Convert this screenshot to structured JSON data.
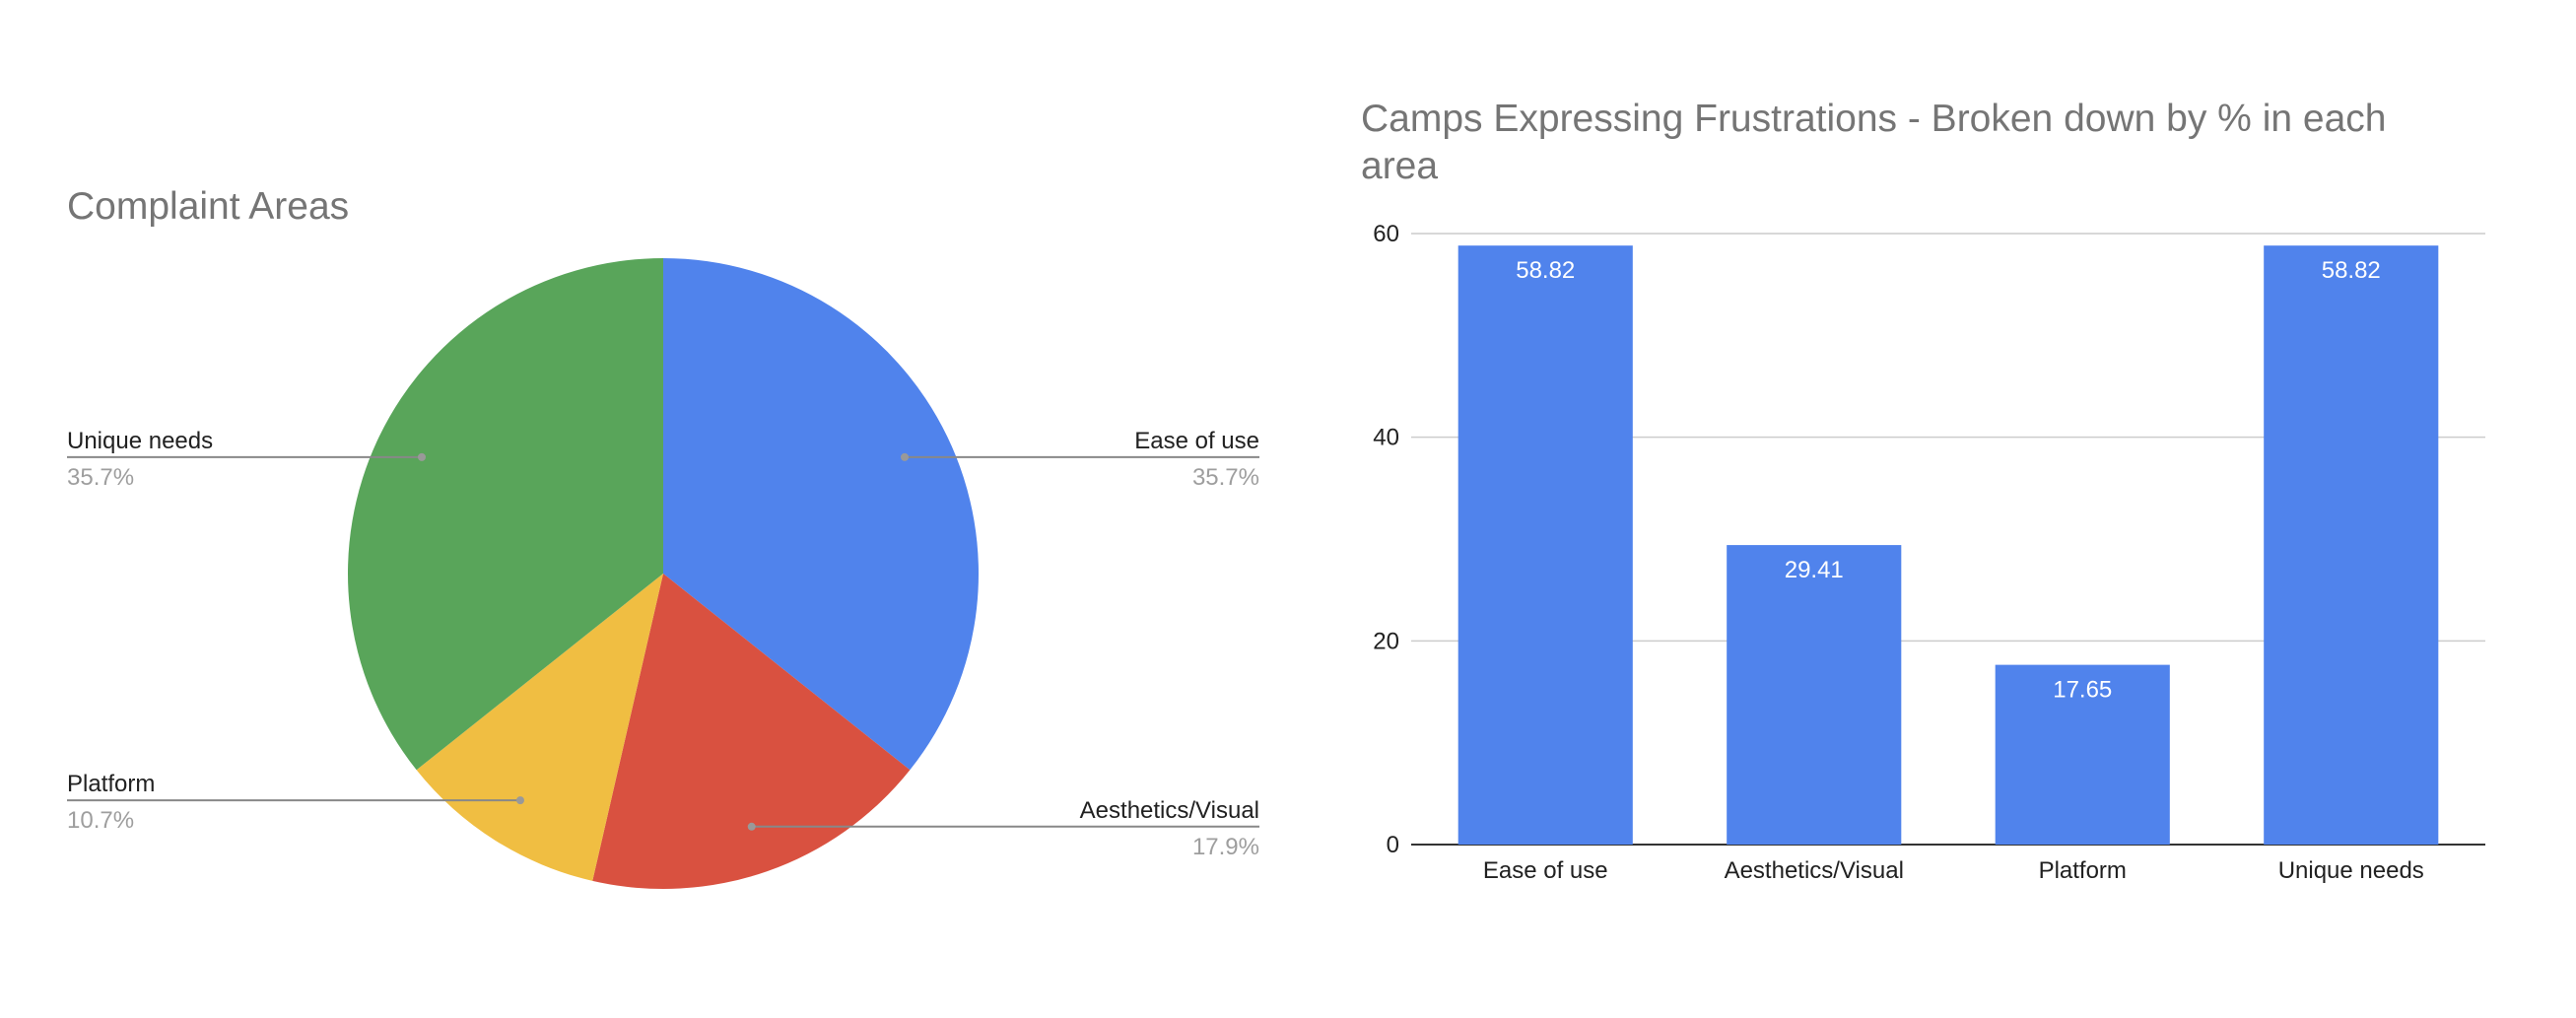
{
  "colors": {
    "blue": "#5083EC",
    "red": "#D95140",
    "yellow": "#F0BE42",
    "green": "#59A55A",
    "title": "#757575",
    "grid": "#cccccc"
  },
  "chart_data": [
    {
      "type": "pie",
      "title": "Complaint Areas",
      "slices": [
        {
          "label": "Ease of use",
          "percent_label": "35.7%",
          "value": 35.7,
          "color": "#5083EC"
        },
        {
          "label": "Aesthetics/Visual",
          "percent_label": "17.9%",
          "value": 17.9,
          "color": "#D95140"
        },
        {
          "label": "Platform",
          "percent_label": "10.7%",
          "value": 10.7,
          "color": "#F0BE42"
        },
        {
          "label": "Unique needs",
          "percent_label": "35.7%",
          "value": 35.7,
          "color": "#59A55A"
        }
      ],
      "start": "12 o'clock",
      "direction": "clockwise",
      "legend": "labels with leader lines"
    },
    {
      "type": "bar",
      "title": "Camps Expressing Frustrations - Broken down by % in each area",
      "title_lines": [
        "Camps Expressing Frustrations - Broken down by % in each",
        "area"
      ],
      "categories": [
        "Ease of use",
        "Aesthetics/Visual",
        "Platform",
        "Unique needs"
      ],
      "values": [
        58.82,
        29.41,
        17.65,
        58.82
      ],
      "value_labels": [
        "58.82",
        "29.41",
        "17.65",
        "58.82"
      ],
      "yticks": [
        "0",
        "20",
        "40",
        "60"
      ],
      "ylim": [
        0,
        60
      ],
      "grid": true,
      "bar_color": "#5083EC",
      "xlabel": "",
      "ylabel": ""
    }
  ]
}
